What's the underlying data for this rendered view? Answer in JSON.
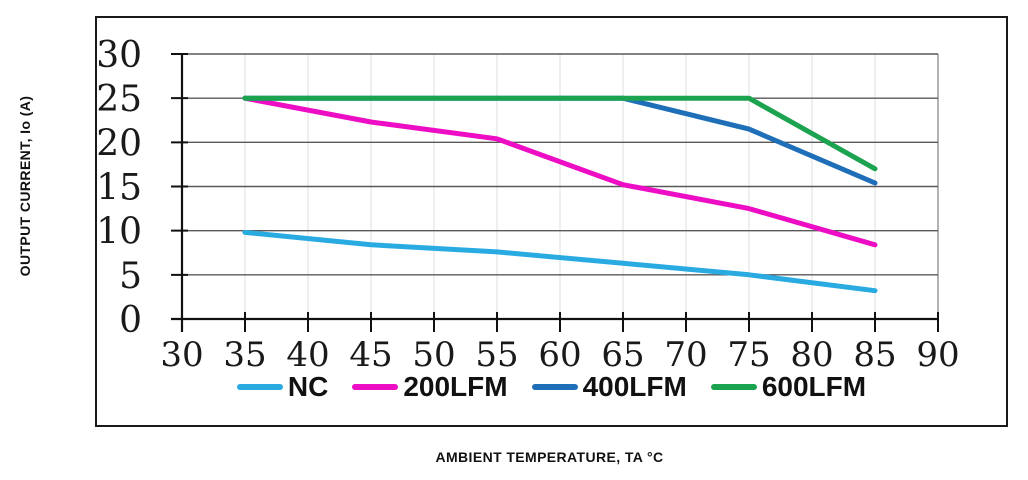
{
  "chart_data": {
    "type": "line",
    "xlabel": "AMBIENT TEMPERATURE, TA °C",
    "ylabel": "OUTPUT CURRENT, Io (A)",
    "x": [
      35,
      45,
      55,
      65,
      75,
      85
    ],
    "series": [
      {
        "name": "NC",
        "color": "#29ABE2",
        "values": [
          9.8,
          8.4,
          7.6,
          6.3,
          5.0,
          3.2
        ]
      },
      {
        "name": "200LFM",
        "color": "#EC0DC4",
        "values": [
          25,
          22.3,
          20.4,
          15.2,
          12.5,
          8.4
        ]
      },
      {
        "name": "400LFM",
        "color": "#1E6FB8",
        "values": [
          25,
          25,
          25,
          25,
          21.5,
          15.4
        ]
      },
      {
        "name": "600LFM",
        "color": "#1CA350",
        "values": [
          25,
          25,
          25,
          25,
          25,
          17
        ]
      }
    ],
    "xlim": [
      30,
      90
    ],
    "ylim": [
      0,
      30
    ],
    "x_ticks": [
      30,
      35,
      40,
      45,
      50,
      55,
      60,
      65,
      70,
      75,
      80,
      85,
      90
    ],
    "y_ticks": [
      0,
      5,
      10,
      15,
      20,
      25,
      30
    ],
    "grid": true,
    "legend_position": "bottom",
    "styles": {
      "h_grid_color": "#595959",
      "v_grid_color": "#e4e4e4",
      "right_edge_color": "#9a9a9a",
      "axis_color": "#111111",
      "tick_label_color": "#1a1a1a",
      "line_width": 5
    }
  }
}
